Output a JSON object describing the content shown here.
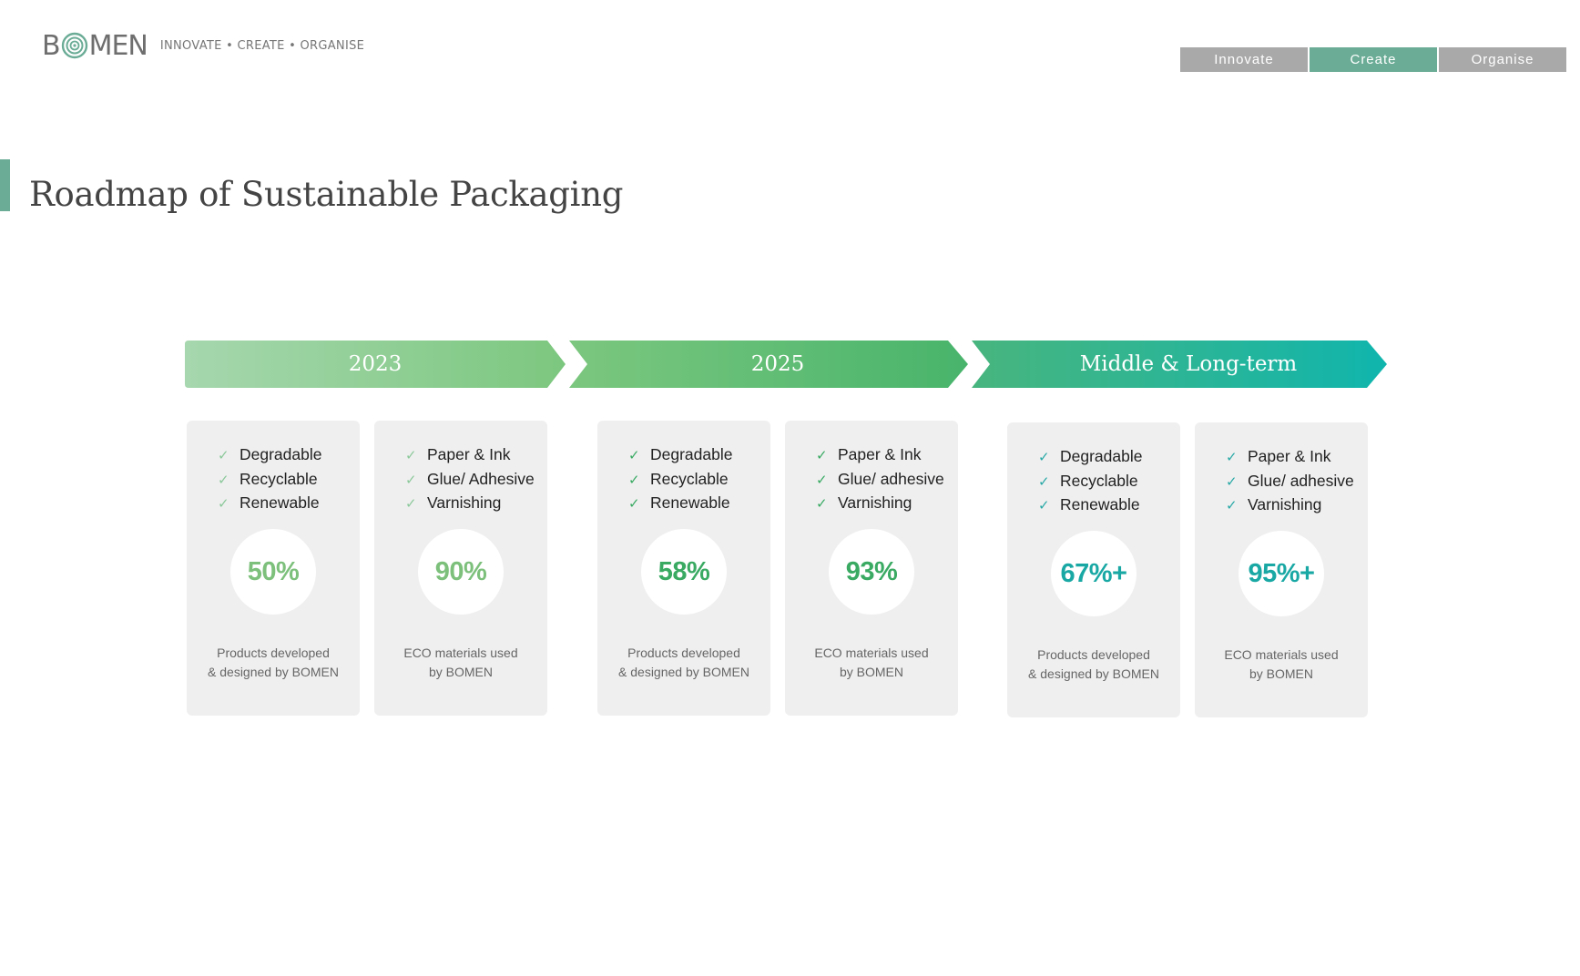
{
  "header": {
    "logo": "BOMEN",
    "logo_prefix": "B",
    "logo_suffix": "MEN",
    "tagline": "INNOVATE • CREATE • ORGANISE"
  },
  "nav": {
    "tabs": [
      {
        "label": "Innovate",
        "active": false
      },
      {
        "label": "Create",
        "active": true
      },
      {
        "label": "Organise",
        "active": false
      }
    ]
  },
  "page_title": "Roadmap of Sustainable Packaging",
  "colors": {
    "accent": "#6aac96",
    "phase_2023_text": "#7cc07c",
    "phase_2025_text": "#3aaa63",
    "phase_long_text": "#1aa8a5",
    "check_2023": "#8cc99a",
    "check_2025": "#3aaa63",
    "check_long": "#2aa9a6"
  },
  "phases": [
    {
      "label": "2023",
      "cards": [
        {
          "items": [
            "Degradable",
            "Recyclable",
            "Renewable"
          ],
          "percent": "50%",
          "caption": [
            "Products developed",
            "& designed by BOMEN"
          ]
        },
        {
          "items": [
            "Paper & Ink",
            "Glue/ Adhesive",
            "Varnishing"
          ],
          "percent": "90%",
          "caption": [
            "ECO materials used",
            "by BOMEN"
          ]
        }
      ]
    },
    {
      "label": "2025",
      "cards": [
        {
          "items": [
            "Degradable",
            "Recyclable",
            "Renewable"
          ],
          "percent": "58%",
          "caption": [
            "Products developed",
            "& designed  by BOMEN"
          ]
        },
        {
          "items": [
            "Paper & Ink",
            "Glue/ adhesive",
            "Varnishing"
          ],
          "percent": "93%",
          "caption": [
            "ECO materials used",
            "by BOMEN"
          ]
        }
      ]
    },
    {
      "label": "Middle & Long-term",
      "cards": [
        {
          "items": [
            "Degradable",
            "Recyclable",
            "Renewable"
          ],
          "percent": "67%+",
          "caption": [
            "Products developed",
            "& designed by BOMEN"
          ]
        },
        {
          "items": [
            "Paper & Ink",
            "Glue/ adhesive",
            "Varnishing"
          ],
          "percent": "95%+",
          "caption": [
            "ECO materials used",
            "by BOMEN"
          ]
        }
      ]
    }
  ]
}
